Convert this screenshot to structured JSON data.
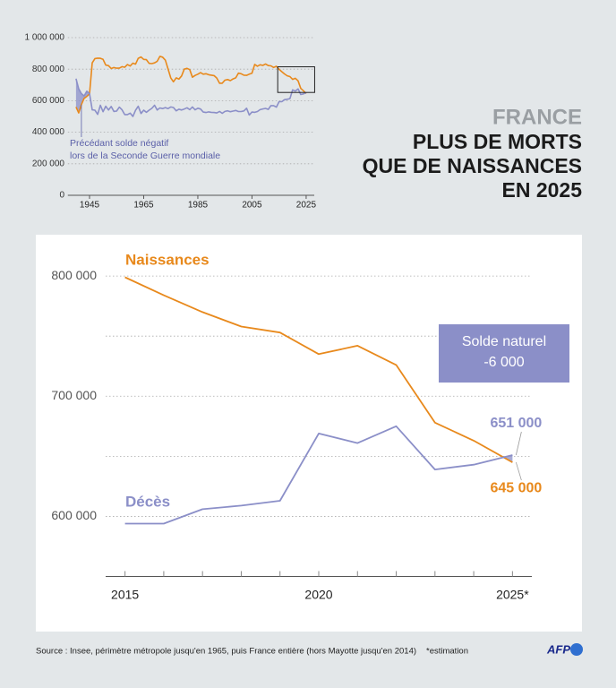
{
  "header": {
    "kicker": "FRANCE",
    "title_lines": [
      "PLUS DE MORTS",
      "QUE DE NAISSANCES",
      "EN 2025"
    ]
  },
  "footer": {
    "source": "Source : Insee, périmètre métropole jusqu'en 1965, puis France entière (hors Mayotte jusqu'en 2014)",
    "note": "*estimation",
    "logo": "AFP"
  },
  "chart_data": [
    {
      "type": "line",
      "x": [
        1940,
        1941,
        1942,
        1943,
        1944,
        1945,
        1946,
        1947,
        1948,
        1949,
        1950,
        1951,
        1952,
        1953,
        1954,
        1955,
        1956,
        1957,
        1958,
        1959,
        1960,
        1961,
        1962,
        1963,
        1964,
        1965,
        1966,
        1967,
        1968,
        1969,
        1970,
        1971,
        1972,
        1973,
        1974,
        1975,
        1976,
        1977,
        1978,
        1979,
        1980,
        1981,
        1982,
        1983,
        1984,
        1985,
        1986,
        1987,
        1988,
        1989,
        1990,
        1991,
        1992,
        1993,
        1994,
        1995,
        1996,
        1997,
        1998,
        1999,
        2000,
        2001,
        2002,
        2003,
        2004,
        2005,
        2006,
        2007,
        2008,
        2009,
        2010,
        2011,
        2012,
        2013,
        2014,
        2015,
        2016,
        2017,
        2018,
        2019,
        2020,
        2021,
        2022,
        2023,
        2024,
        2025
      ],
      "series": [
        {
          "color": "#e8891c",
          "values": [
            560000,
            522000,
            575000,
            615000,
            627000,
            643000,
            840000,
            867000,
            870000,
            869000,
            862000,
            826000,
            822000,
            804000,
            810000,
            806000,
            806000,
            816000,
            812000,
            829000,
            820000,
            838000,
            832000,
            869000,
            877000,
            862000,
            860000,
            837000,
            835000,
            840000,
            850000,
            881000,
            876000,
            857000,
            801000,
            745000,
            720000,
            745000,
            737000,
            757000,
            800000,
            805000,
            797000,
            749000,
            760000,
            768000,
            778000,
            768000,
            771000,
            765000,
            762000,
            759000,
            744000,
            711000,
            711000,
            730000,
            734000,
            727000,
            738000,
            745000,
            775000,
            771000,
            762000,
            761000,
            768000,
            774000,
            830000,
            819000,
            828000,
            824000,
            833000,
            823000,
            821000,
            811000,
            818000,
            799000,
            784000,
            770000,
            758000,
            753000,
            735000,
            742000,
            726000,
            678000,
            663000,
            645000
          ]
        },
        {
          "color": "#8b8fc8",
          "values": [
            740000,
            675000,
            645000,
            630000,
            660000,
            645000,
            542000,
            540000,
            513000,
            571000,
            530000,
            565000,
            541000,
            563000,
            532000,
            534000,
            559000,
            542000,
            512000,
            512000,
            521000,
            500000,
            539000,
            565000,
            519000,
            540000,
            526000,
            540000,
            551000,
            571000,
            541000,
            554000,
            550000,
            556000,
            550000,
            560000,
            557000,
            536000,
            546000,
            541000,
            547000,
            555000,
            543000,
            560000,
            542000,
            552000,
            547000,
            528000,
            525000,
            529000,
            526000,
            525000,
            522000,
            532000,
            520000,
            532000,
            536000,
            530000,
            534000,
            538000,
            531000,
            531000,
            535000,
            552000,
            509000,
            528000,
            526000,
            531000,
            543000,
            548000,
            551000,
            545000,
            569000,
            569000,
            559000,
            594000,
            594000,
            606000,
            609000,
            613000,
            669000,
            661000,
            675000,
            639000,
            643000,
            651000
          ]
        }
      ],
      "xlim": [
        1937,
        2028
      ],
      "xticks": [
        1945,
        1965,
        1985,
        2005,
        2025
      ],
      "ylim": [
        0,
        1000000
      ],
      "yticks": [
        0,
        {
          "value": 200000,
          "label": "200 000"
        },
        {
          "value": 400000,
          "label": "400 000"
        },
        {
          "value": 600000,
          "label": "600 000"
        },
        {
          "value": 800000,
          "label": "800 000"
        },
        {
          "value": 1000000,
          "label": "1 000 000"
        }
      ],
      "grid": true,
      "annotation": [
        "Précédant solde négatif",
        "lors de la Seconde Guerre mondiale"
      ]
    },
    {
      "type": "line",
      "x": [
        2015,
        2016,
        2017,
        2018,
        2019,
        2020,
        2021,
        2022,
        2023,
        2024,
        2025
      ],
      "series": [
        {
          "name": "Naissances",
          "color": "#e8891c",
          "values": [
            799000,
            784000,
            770000,
            758000,
            753000,
            735000,
            742000,
            726000,
            678000,
            663000,
            645000
          ],
          "value_labels": [
            null,
            null,
            null,
            null,
            null,
            null,
            null,
            null,
            null,
            null,
            "645 000"
          ]
        },
        {
          "name": "Décès",
          "color": "#8b8fc8",
          "values": [
            594000,
            594000,
            606000,
            609000,
            613000,
            669000,
            661000,
            675000,
            639000,
            643000,
            651000
          ],
          "value_labels": [
            null,
            null,
            null,
            null,
            null,
            null,
            null,
            null,
            null,
            null,
            "651 000"
          ]
        }
      ],
      "xlim": [
        2014.5,
        2025.5
      ],
      "xticks": [
        2015,
        2020,
        {
          "value": 2025,
          "label": "2025*"
        }
      ],
      "ylim": [
        550000,
        815000
      ],
      "yticks": [
        {
          "value": 600000,
          "label": "600 000"
        },
        {
          "value": 700000,
          "label": "700 000"
        },
        {
          "value": 800000,
          "label": "800 000"
        }
      ],
      "minor_yticks": [
        650000,
        750000
      ],
      "grid": true,
      "annotation": [
        "Solde naturel",
        "-6 000"
      ]
    }
  ]
}
